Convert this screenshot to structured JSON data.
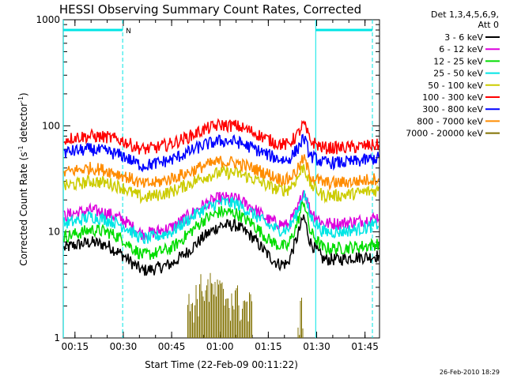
{
  "chart_data": {
    "type": "line",
    "title": "HESSI Observing Summary Count Rates, Corrected",
    "xlabel": "Start Time (22-Feb-09 00:11:22)",
    "ylabel": "Corrected Count Rate (s⁻¹ detector⁻¹)",
    "ylabel_main": "Corrected Count Rate (s",
    "ylabel_sup1": "-1",
    "ylabel_mid": " detector",
    "ylabel_sup2": "-1",
    "ylabel_end": ")",
    "yscale": "log",
    "ylim": [
      1,
      1000
    ],
    "xlim": [
      "00:11:22",
      "01:49:30"
    ],
    "xticks": [
      "00:15",
      "00:30",
      "00:45",
      "01:00",
      "01:15",
      "01:30",
      "01:45"
    ],
    "yticks": [
      "1",
      "10",
      "100",
      "1000"
    ],
    "legend_header": [
      "Det 1,3,4,5,6,9,",
      "Att 0"
    ],
    "legend_position": "right, outside plot",
    "timestamp": "26-Feb-2010 18:29",
    "night_marker": "N",
    "time_minutes": [
      11.4,
      15,
      20,
      25,
      30,
      33,
      36,
      40,
      45,
      50,
      55,
      60,
      65,
      70,
      75,
      78,
      81,
      84,
      86,
      88,
      92,
      97,
      102,
      106,
      109.5
    ],
    "series": [
      {
        "name": "3 - 6 keV",
        "color": "#000000",
        "values": [
          7,
          7.5,
          8,
          7.5,
          6,
          5,
          4.3,
          4.5,
          5,
          6.5,
          9,
          11.5,
          11.5,
          9,
          6,
          5,
          5,
          9,
          14,
          8,
          5.5,
          5.5,
          5.8,
          5.8,
          6
        ]
      },
      {
        "name": "6 - 12 keV",
        "color": "#dd00dd",
        "values": [
          14,
          15,
          16,
          15,
          13,
          11,
          9.5,
          10,
          11,
          14,
          18,
          21,
          20.5,
          17,
          13,
          12,
          11.5,
          16,
          25,
          16,
          12,
          12,
          12.5,
          13,
          14
        ]
      },
      {
        "name": "12 - 25 keV",
        "color": "#00dd00",
        "values": [
          9,
          9.5,
          10.5,
          10,
          8.5,
          7,
          6,
          6.3,
          7,
          9.5,
          13,
          15.5,
          15,
          12,
          8.5,
          7.5,
          7.2,
          12,
          20,
          10,
          7,
          7,
          7.2,
          7.4,
          7.8
        ]
      },
      {
        "name": "25 - 50 keV",
        "color": "#00e5e5",
        "values": [
          12,
          12.5,
          14,
          13,
          11.5,
          9.8,
          8.5,
          9,
          10,
          13,
          16.5,
          19,
          18.5,
          15,
          11.5,
          10.5,
          10.5,
          15,
          24,
          14,
          10,
          10,
          10.5,
          11,
          12
        ]
      },
      {
        "name": "50 - 100 keV",
        "color": "#cccc00",
        "values": [
          27,
          28,
          30,
          29,
          26,
          23,
          21,
          22,
          24,
          28,
          33,
          36,
          36,
          32,
          27,
          25,
          25,
          32,
          42,
          28,
          22,
          22,
          23,
          24,
          25
        ]
      },
      {
        "name": "100 - 300 keV",
        "color": "#ff0000",
        "values": [
          74,
          78,
          80,
          78,
          72,
          65,
          60,
          62,
          68,
          78,
          92,
          102,
          100,
          88,
          74,
          68,
          66,
          82,
          105,
          72,
          62,
          62,
          63,
          65,
          66
        ]
      },
      {
        "name": "300 - 800 keV",
        "color": "#0000ff",
        "values": [
          56,
          58,
          60,
          57,
          52,
          46,
          42,
          44,
          48,
          56,
          66,
          72,
          71,
          62,
          53,
          49,
          47,
          60,
          78,
          52,
          45,
          45,
          46,
          48,
          50
        ]
      },
      {
        "name": "800 - 7000 keV",
        "color": "#ff8c00",
        "values": [
          36,
          38,
          40,
          38,
          34,
          31,
          28,
          29,
          32,
          36,
          42,
          46,
          45,
          40,
          35,
          32,
          31,
          38,
          50,
          34,
          29,
          29,
          30,
          31,
          32
        ]
      },
      {
        "name": "7000 - 20000 keV",
        "color": "#807000",
        "values": [
          null,
          null,
          null,
          null,
          null,
          null,
          null,
          null,
          null,
          1.8,
          3,
          2.5,
          2.2,
          1.8,
          null,
          null,
          null,
          1.6,
          1.6,
          null,
          null,
          null,
          null,
          null,
          null
        ]
      }
    ],
    "saa_flag": {
      "color": "#00e5e5",
      "value": 800,
      "ranges": [
        [
          11.4,
          29.8
        ],
        [
          89.7,
          107.3
        ]
      ],
      "boundaries": [
        11.4,
        29.8,
        89.7,
        107.3
      ]
    },
    "solid_boundaries": [
      11.4,
      89.7
    ]
  }
}
